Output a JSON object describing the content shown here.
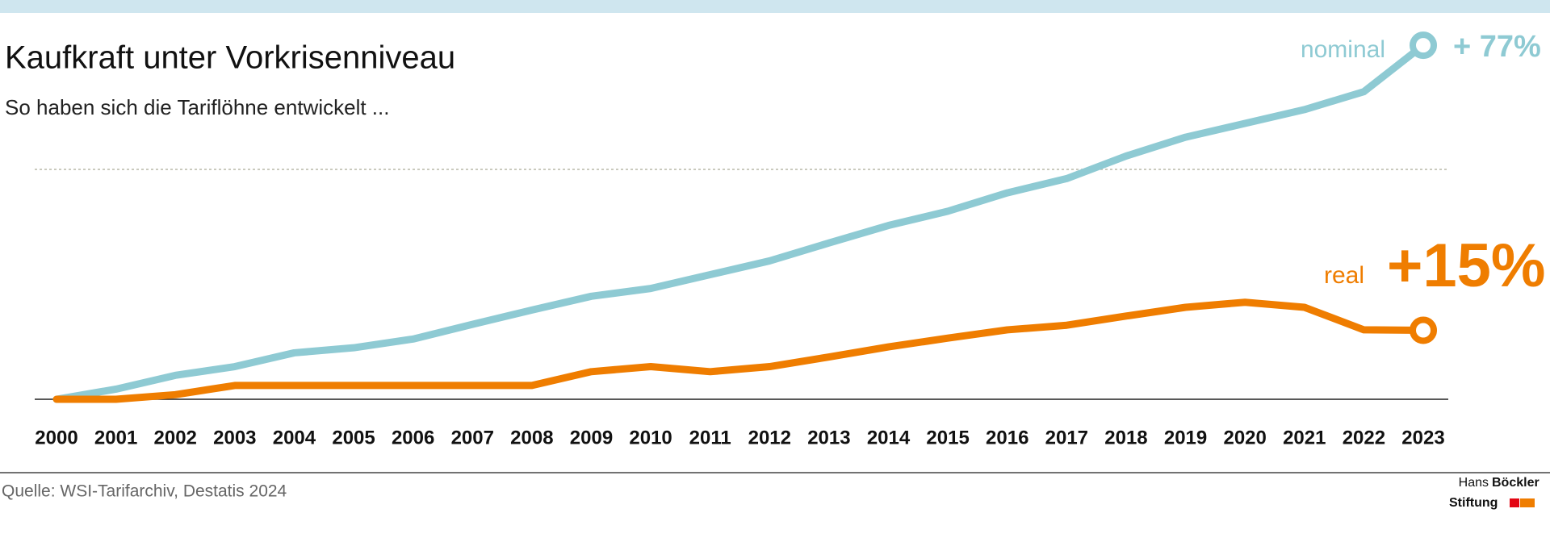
{
  "chart_data": {
    "type": "line",
    "title": "Kaufkraft unter Vorkrisenniveau",
    "subtitle": "So haben sich die Tariflöhne entwickelt ...",
    "categories": [
      "2000",
      "2001",
      "2002",
      "2003",
      "2004",
      "2005",
      "2006",
      "2007",
      "2008",
      "2009",
      "2010",
      "2011",
      "2012",
      "2013",
      "2014",
      "2015",
      "2016",
      "2017",
      "2018",
      "2019",
      "2020",
      "2021",
      "2022",
      "2023"
    ],
    "series": [
      {
        "name": "nominal",
        "color": "#8ecad3",
        "end_label": "+ 77%",
        "values": [
          0,
          2.2,
          5.2,
          7.1,
          10.1,
          11.2,
          13.1,
          16.3,
          19.4,
          22.4,
          24.1,
          27.1,
          30.1,
          34.0,
          37.8,
          40.9,
          44.9,
          48.0,
          52.9,
          57.0,
          60.0,
          63.0,
          66.9,
          77
        ]
      },
      {
        "name": "real",
        "color": "#ef7d00",
        "end_label": "+15%",
        "values": [
          0,
          0,
          1,
          3,
          3,
          3,
          3,
          3,
          3,
          6,
          7.1,
          6,
          7.1,
          9.2,
          11.4,
          13.3,
          15.1,
          16.1,
          18.1,
          20,
          21.1,
          20,
          15.1,
          15
        ]
      }
    ],
    "ylim": [
      0,
      80
    ],
    "grid_lines": [
      50
    ],
    "source": "Quelle: WSI-Tarifarchiv, Destatis 2024",
    "logo": [
      "Hans",
      "Böckler",
      "Stiftung"
    ]
  }
}
